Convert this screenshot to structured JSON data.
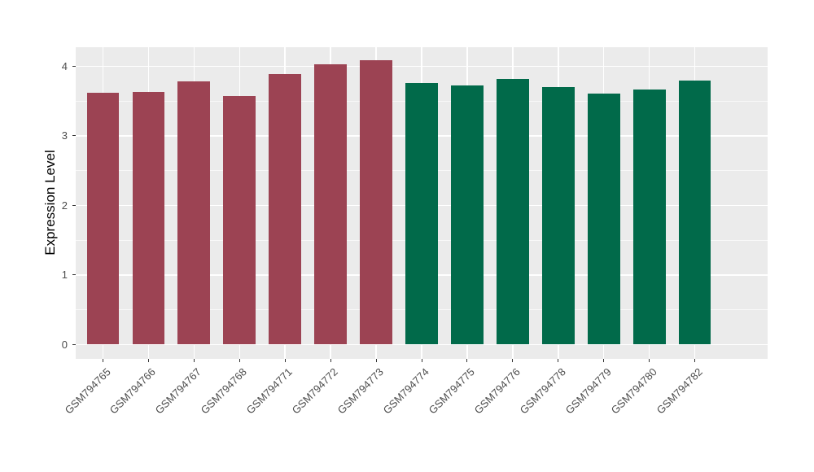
{
  "chart_data": {
    "type": "bar",
    "title": "",
    "xlabel": "",
    "ylabel": "Expression Level",
    "categories": [
      "GSM794765",
      "GSM794766",
      "GSM794767",
      "GSM794768",
      "GSM794771",
      "GSM794772",
      "GSM794773",
      "GSM794774",
      "GSM794775",
      "GSM794776",
      "GSM794778",
      "GSM794779",
      "GSM794780",
      "GSM794782"
    ],
    "values": [
      3.62,
      3.63,
      3.78,
      3.57,
      3.89,
      4.03,
      4.09,
      3.76,
      3.73,
      3.82,
      3.7,
      3.61,
      3.67,
      3.8
    ],
    "groups": [
      "A",
      "A",
      "A",
      "A",
      "A",
      "A",
      "A",
      "B",
      "B",
      "B",
      "B",
      "B",
      "B",
      "B"
    ],
    "group_colors": {
      "A": "#9C4353",
      "B": "#016A4A"
    },
    "yticks": [
      0,
      1,
      2,
      3,
      4
    ],
    "ytick_labels": [
      "0",
      "1",
      "2",
      "3",
      "4"
    ],
    "minor_breaks": [
      0.5,
      1.5,
      2.5,
      3.5
    ],
    "ylim": [
      0,
      4.27
    ],
    "grid": true,
    "legend_position": "none",
    "panel_background": "#EBEBEB",
    "gridline_color": "#FFFFFF",
    "axis_text_color": "#4D4D4D",
    "axis_title_color": "#000000"
  }
}
